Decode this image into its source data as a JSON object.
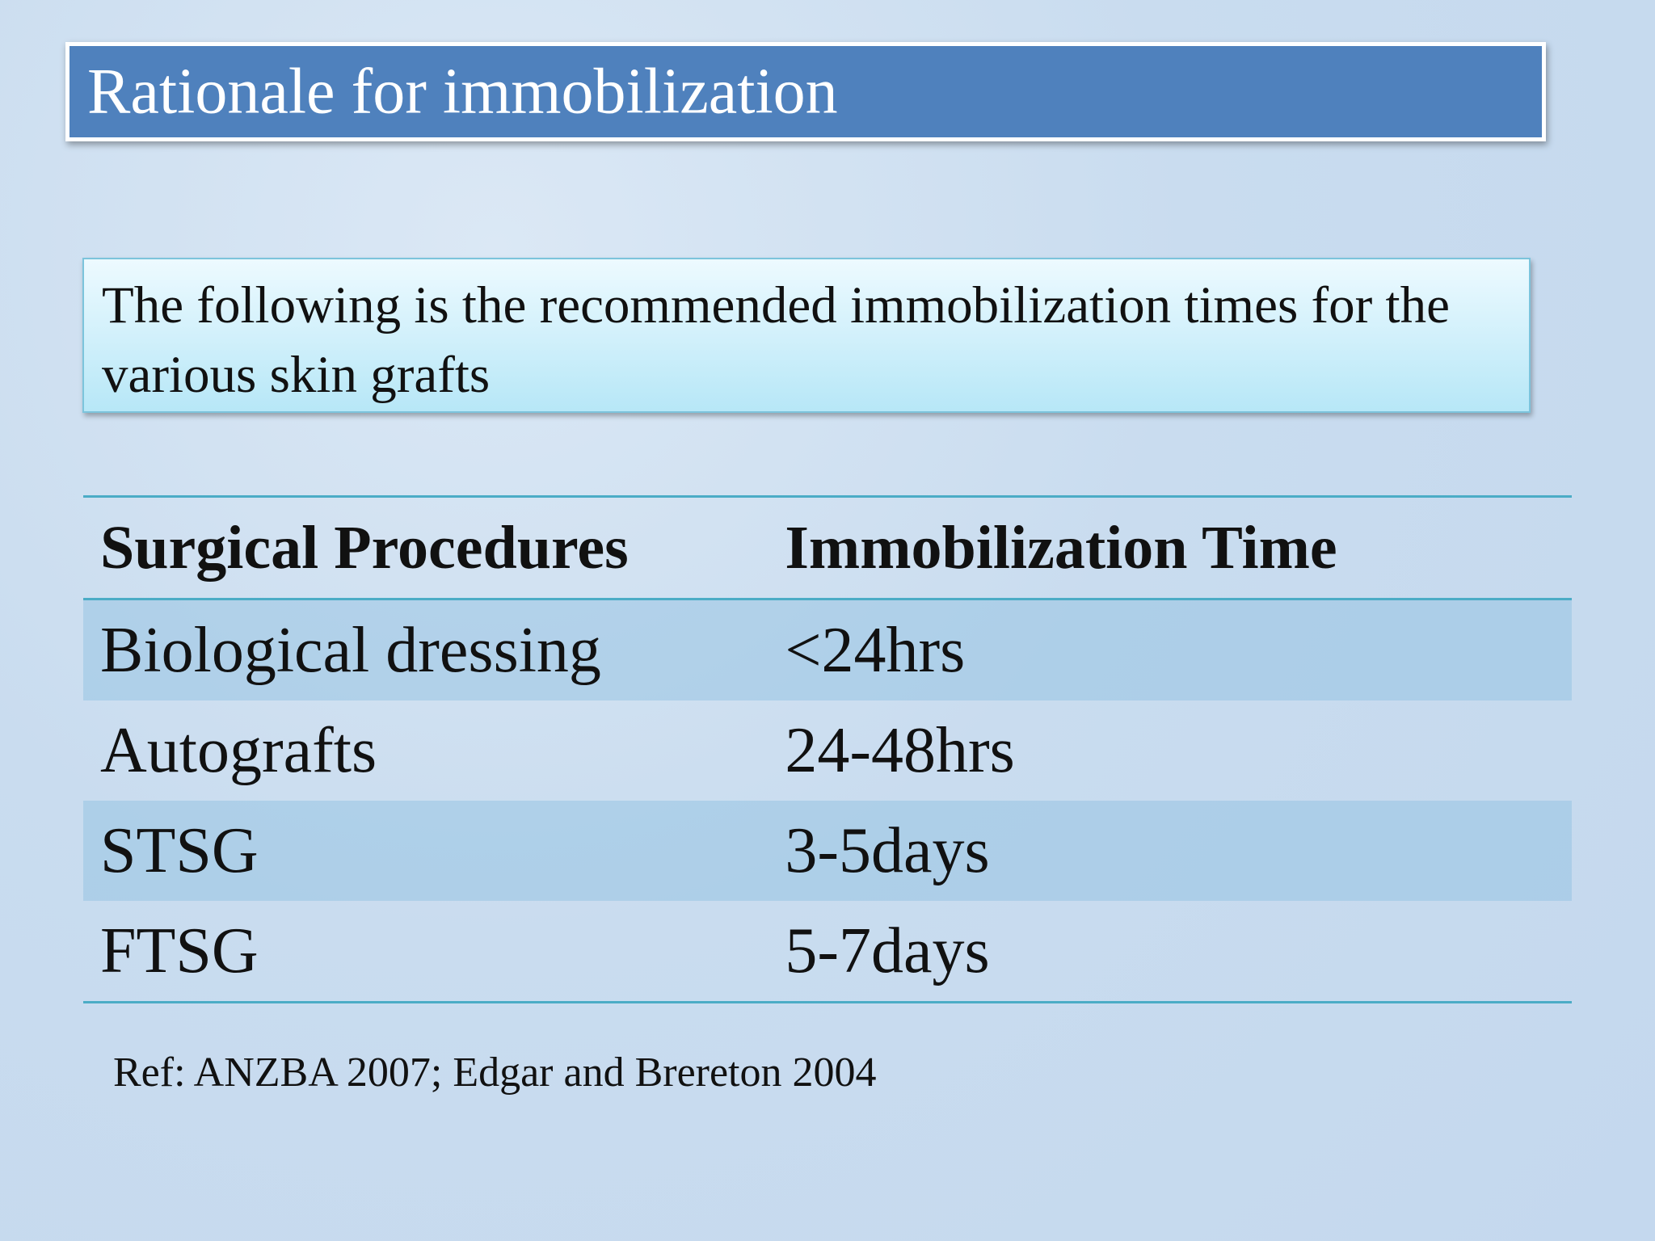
{
  "header": {
    "title": "Rationale for immobilization"
  },
  "intro": "The following is the recommended immobilization times for the various skin grafts",
  "table": {
    "columns": [
      "Surgical Procedures",
      "Immobilization Time"
    ],
    "rows": [
      [
        "Biological dressing",
        "<24hrs"
      ],
      [
        "Autografts",
        "24-48hrs"
      ],
      [
        "STSG",
        "3-5days"
      ],
      [
        "FTSG",
        "5-7days"
      ]
    ]
  },
  "reference": "Ref: ANZBA 2007; Edgar and Brereton 2004"
}
